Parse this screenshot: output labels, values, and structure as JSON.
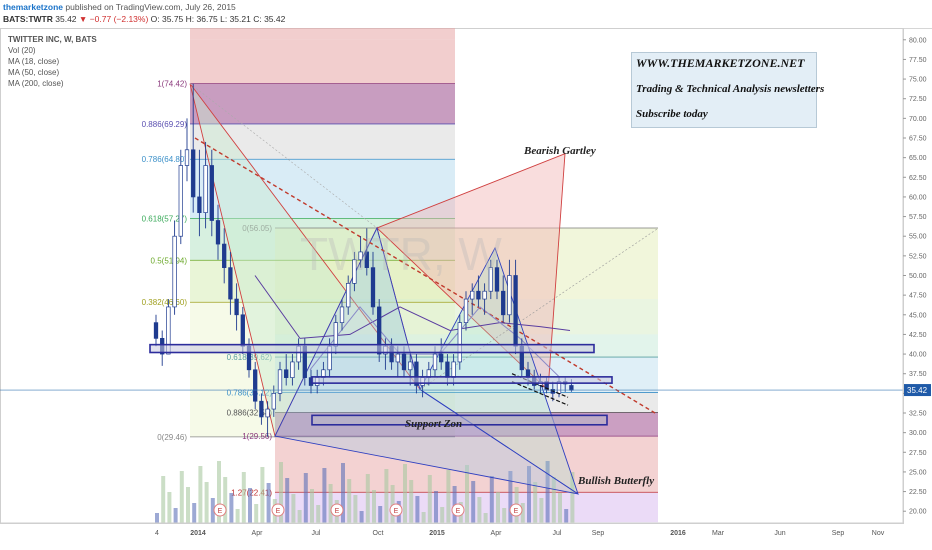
{
  "header": {
    "publisher": "themarketzone",
    "published_text": " published on TradingView.com, July 26, 2015",
    "symbol": "BATS:TWTR",
    "last": "35.42",
    "change": "▼ −0.77 (−2.13%)",
    "ohlc": "O: 35.75  H: 36.75  L: 35.21  C: 35.42"
  },
  "legend": {
    "title": "TWITTER INC, W, BATS",
    "items": [
      "Vol (20)",
      "MA (18, close)",
      "MA (50, close)",
      "MA (200, close)"
    ]
  },
  "promo": {
    "url": "WWW.THEMARKETZONE.NET",
    "tagline": "Trading & Technical Analysis newsletters",
    "cta": "Subscribe today"
  },
  "annotations": {
    "bearish": "Bearish Gartley",
    "bullish": "Bullish Butterfly",
    "support": "Support Zon"
  },
  "watermark": "TWTR, W",
  "colors": {
    "accent": "#1a73c9",
    "bear": "#d03030",
    "candle_up": "#ffffff",
    "candle_down": "#1f3b8f",
    "trend": "#c0392b",
    "zone": "#2c2c9c"
  },
  "chart_data": {
    "type": "candlestick",
    "title": "TWITTER INC, W, BATS",
    "ylim": [
      18.5,
      81.5
    ],
    "y_ticks": [
      "80.00",
      "77.50",
      "75.00",
      "72.50",
      "70.00",
      "67.50",
      "65.00",
      "62.50",
      "60.00",
      "57.50",
      "55.00",
      "52.50",
      "50.00",
      "47.50",
      "45.00",
      "42.50",
      "40.00",
      "37.50",
      "35.00",
      "32.50",
      "30.00",
      "27.50",
      "25.00",
      "22.50",
      "20.00"
    ],
    "x_ticks": [
      "4",
      "2014",
      "Apr",
      "Jul",
      "Oct",
      "2015",
      "Apr",
      "Jul",
      "Sep",
      "2016",
      "Mar",
      "Jun",
      "Sep",
      "Nov"
    ],
    "last_price": "35.42",
    "fib_levels": [
      {
        "label": "1(74.42)",
        "value": 74.42
      },
      {
        "label": "0.886(69.29)",
        "value": 69.29
      },
      {
        "label": "0.786(64.80)",
        "value": 64.8
      },
      {
        "label": "0.618(57.27)",
        "value": 57.27
      },
      {
        "label": "0.5(51.94)",
        "value": 51.94
      },
      {
        "label": "0.382(46.60)",
        "value": 46.6
      },
      {
        "label": "0(29.46)",
        "value": 29.46
      }
    ],
    "fib2_levels": [
      {
        "label": "0(56.05)",
        "value": 56.05
      },
      {
        "label": "0.618(39.62)",
        "value": 39.62
      },
      {
        "label": "0.786(35.12)",
        "value": 35.12
      },
      {
        "label": "0.886(32.58)",
        "value": 32.58
      },
      {
        "label": "1(29.56)",
        "value": 29.56
      },
      {
        "label": "1.27(22.41)",
        "value": 22.41
      }
    ],
    "zones": [
      {
        "name": "resistance",
        "low": 40.2,
        "high": 41.2
      },
      {
        "name": "mid",
        "low": 36.3,
        "high": 37.1
      },
      {
        "name": "support",
        "low": 31.0,
        "high": 32.2
      }
    ],
    "candles": [
      [
        44,
        45,
        41,
        42
      ],
      [
        42,
        43,
        38.5,
        40
      ],
      [
        40,
        47,
        40,
        46
      ],
      [
        46,
        57,
        45,
        55
      ],
      [
        55,
        66,
        54,
        64
      ],
      [
        64,
        70,
        62,
        66
      ],
      [
        66,
        74.4,
        58,
        60
      ],
      [
        60,
        66,
        55,
        58
      ],
      [
        58,
        67,
        56,
        64
      ],
      [
        64,
        66,
        55,
        57
      ],
      [
        57,
        59,
        52,
        54
      ],
      [
        54,
        56,
        49,
        51
      ],
      [
        51,
        53,
        45,
        47
      ],
      [
        47,
        49,
        43,
        45
      ],
      [
        45,
        46,
        40,
        41
      ],
      [
        41,
        42,
        37,
        38
      ],
      [
        38,
        39,
        33,
        34
      ],
      [
        34,
        35,
        31,
        32
      ],
      [
        32,
        34,
        29.5,
        33
      ],
      [
        33,
        36,
        32,
        35
      ],
      [
        35,
        39,
        34,
        38
      ],
      [
        38,
        40,
        36,
        37
      ],
      [
        37,
        40,
        36,
        39
      ],
      [
        39,
        42,
        38,
        41
      ],
      [
        41,
        42,
        36,
        37
      ],
      [
        37,
        38,
        35,
        36
      ],
      [
        36,
        38,
        35,
        37
      ],
      [
        37,
        39,
        36,
        38
      ],
      [
        38,
        42,
        37,
        41
      ],
      [
        41,
        45,
        40,
        44
      ],
      [
        44,
        47,
        43,
        46
      ],
      [
        46,
        50,
        45,
        49
      ],
      [
        49,
        53,
        48,
        52
      ],
      [
        52,
        55,
        51,
        53
      ],
      [
        53,
        56,
        50,
        51
      ],
      [
        51,
        53,
        45,
        46
      ],
      [
        46,
        47,
        39,
        40
      ],
      [
        40,
        42,
        38,
        41
      ],
      [
        41,
        42,
        38,
        39
      ],
      [
        39,
        41,
        37,
        40
      ],
      [
        40,
        41,
        37,
        38
      ],
      [
        38,
        40,
        36,
        39
      ],
      [
        39,
        40,
        35,
        36
      ],
      [
        36,
        38,
        34.5,
        37
      ],
      [
        37,
        39,
        36,
        38
      ],
      [
        38,
        41,
        37,
        40
      ],
      [
        40,
        42,
        38,
        39
      ],
      [
        39,
        40,
        36,
        37
      ],
      [
        37,
        40,
        36,
        39
      ],
      [
        39,
        45,
        38,
        44
      ],
      [
        44,
        48,
        43,
        47
      ],
      [
        47,
        49,
        45,
        48
      ],
      [
        48,
        50,
        46,
        47
      ],
      [
        47,
        49,
        45,
        48
      ],
      [
        48,
        52,
        47,
        51
      ],
      [
        51,
        52,
        47,
        48
      ],
      [
        48,
        50,
        44,
        45
      ],
      [
        45,
        52,
        44,
        50
      ],
      [
        50,
        52,
        40,
        41
      ],
      [
        41,
        42,
        37,
        38
      ],
      [
        38,
        39,
        36,
        37
      ],
      [
        37,
        38,
        35.5,
        36
      ],
      [
        36,
        37.5,
        35,
        36.5
      ],
      [
        36.5,
        37,
        35,
        35.5
      ],
      [
        35.5,
        36.5,
        34,
        35
      ],
      [
        35,
        37,
        34.5,
        36.5
      ],
      [
        36.5,
        37,
        35.2,
        36.2
      ],
      [
        36,
        36.8,
        35.2,
        35.4
      ]
    ],
    "volume_markers": [
      "E",
      "E",
      "E",
      "E",
      "E",
      "E",
      "E",
      "E"
    ]
  }
}
